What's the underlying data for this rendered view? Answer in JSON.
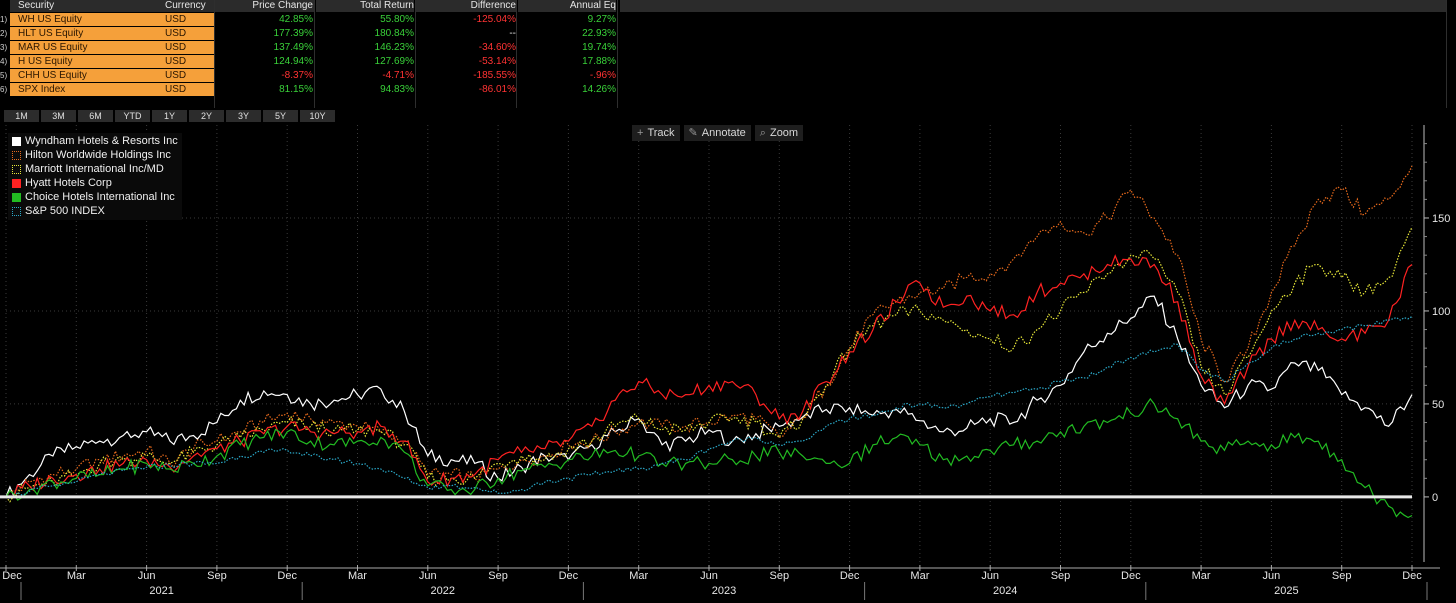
{
  "table": {
    "headers": [
      "Security",
      "Currency",
      "Price Change",
      "Total Return",
      "Difference",
      "Annual Eq"
    ],
    "rows": [
      {
        "num": "1)",
        "security": "WH US Equity",
        "currency": "USD",
        "price_change": "42.85%",
        "total_return": "55.80%",
        "difference": "-125.04%",
        "annual_eq": "9.27%"
      },
      {
        "num": "2)",
        "security": "HLT US Equity",
        "currency": "USD",
        "price_change": "177.39%",
        "total_return": "180.84%",
        "difference": "--",
        "annual_eq": "22.93%"
      },
      {
        "num": "3)",
        "security": "MAR US Equity",
        "currency": "USD",
        "price_change": "137.49%",
        "total_return": "146.23%",
        "difference": "-34.60%",
        "annual_eq": "19.74%"
      },
      {
        "num": "4)",
        "security": "H US Equity",
        "currency": "USD",
        "price_change": "124.94%",
        "total_return": "127.69%",
        "difference": "-53.14%",
        "annual_eq": "17.88%"
      },
      {
        "num": "5)",
        "security": "CHH US Equity",
        "currency": "USD",
        "price_change": "-8.37%",
        "total_return": "-4.71%",
        "difference": "-185.55%",
        "annual_eq": "-.96%"
      },
      {
        "num": "6)",
        "security": "SPX Index",
        "currency": "USD",
        "price_change": "81.15%",
        "total_return": "94.83%",
        "difference": "-86.01%",
        "annual_eq": "14.26%"
      }
    ]
  },
  "periods": [
    "1M",
    "3M",
    "6M",
    "YTD",
    "1Y",
    "2Y",
    "3Y",
    "5Y",
    "10Y"
  ],
  "tools": [
    {
      "icon": "crosshair-icon",
      "glyph": "+",
      "label": "Track"
    },
    {
      "icon": "pencil-icon",
      "glyph": "✎",
      "label": "Annotate"
    },
    {
      "icon": "magnifier-icon",
      "glyph": "⌕",
      "label": "Zoom"
    }
  ],
  "colors": {
    "positive": "#39d039",
    "negative": "#ff3333",
    "neutral": "#e6e6e6",
    "accent": "#f5a03a"
  },
  "chart_data": {
    "type": "line",
    "x_range": [
      "2020-12",
      "2025-12"
    ],
    "ylim": [
      -35,
      200
    ],
    "y_ticks": [
      0,
      50,
      100,
      150
    ],
    "x_ticks": [
      {
        "label": "Dec",
        "date": "2020-12"
      },
      {
        "label": "Mar",
        "date": "2021-03"
      },
      {
        "label": "Jun",
        "date": "2021-06"
      },
      {
        "label": "Sep",
        "date": "2021-09"
      },
      {
        "label": "Dec",
        "date": "2021-12"
      },
      {
        "label": "Mar",
        "date": "2022-03"
      },
      {
        "label": "Jun",
        "date": "2022-06"
      },
      {
        "label": "Sep",
        "date": "2022-09"
      },
      {
        "label": "Dec",
        "date": "2022-12"
      },
      {
        "label": "Mar",
        "date": "2023-03"
      },
      {
        "label": "Jun",
        "date": "2023-06"
      },
      {
        "label": "Sep",
        "date": "2023-09"
      },
      {
        "label": "Dec",
        "date": "2023-12"
      },
      {
        "label": "Mar",
        "date": "2024-03"
      },
      {
        "label": "Jun",
        "date": "2024-06"
      },
      {
        "label": "Sep",
        "date": "2024-09"
      },
      {
        "label": "Dec",
        "date": "2024-12"
      },
      {
        "label": "Mar",
        "date": "2025-03"
      },
      {
        "label": "Jun",
        "date": "2025-06"
      },
      {
        "label": "Sep",
        "date": "2025-09"
      },
      {
        "label": "Dec",
        "date": "2025-12"
      }
    ],
    "years": [
      {
        "label": "2021",
        "date": "2021-06"
      },
      {
        "label": "2022",
        "date": "2022-06"
      },
      {
        "label": "2023",
        "date": "2023-06"
      },
      {
        "label": "2024",
        "date": "2024-06"
      },
      {
        "label": "2025",
        "date": "2025-06"
      }
    ],
    "grid": true,
    "legend_position": "top-left",
    "x": [
      "2020-12",
      "2021-01",
      "2021-02",
      "2021-03",
      "2021-04",
      "2021-05",
      "2021-06",
      "2021-07",
      "2021-08",
      "2021-09",
      "2021-10",
      "2021-11",
      "2021-12",
      "2022-01",
      "2022-02",
      "2022-03",
      "2022-04",
      "2022-05",
      "2022-06",
      "2022-07",
      "2022-08",
      "2022-09",
      "2022-10",
      "2022-11",
      "2022-12",
      "2023-01",
      "2023-02",
      "2023-03",
      "2023-04",
      "2023-05",
      "2023-06",
      "2023-07",
      "2023-08",
      "2023-09",
      "2023-10",
      "2023-11",
      "2023-12",
      "2024-01",
      "2024-02",
      "2024-03",
      "2024-04",
      "2024-05",
      "2024-06",
      "2024-07",
      "2024-08",
      "2024-09",
      "2024-10",
      "2024-11",
      "2024-12",
      "2025-01",
      "2025-02",
      "2025-03",
      "2025-04",
      "2025-05",
      "2025-06",
      "2025-07",
      "2025-08",
      "2025-09",
      "2025-10",
      "2025-11",
      "2025-12"
    ],
    "series": [
      {
        "name": "Wyndham Hotels & Resorts Inc",
        "color": "#ffffff",
        "style": "solid",
        "values": [
          0,
          12,
          22,
          27,
          30,
          33,
          35,
          30,
          33,
          40,
          52,
          57,
          55,
          50,
          52,
          55,
          58,
          46,
          22,
          20,
          18,
          10,
          16,
          22,
          20,
          28,
          35,
          42,
          28,
          30,
          36,
          30,
          34,
          38,
          43,
          47,
          48,
          44,
          47,
          41,
          35,
          37,
          42,
          40,
          52,
          60,
          78,
          88,
          96,
          108,
          85,
          60,
          48,
          60,
          58,
          72,
          68,
          55,
          48,
          38,
          55
        ]
      },
      {
        "name": "Hilton Worldwide Holdings Inc",
        "color": "#e86a1c",
        "style": "dotted",
        "values": [
          0,
          8,
          12,
          15,
          20,
          22,
          25,
          18,
          26,
          30,
          35,
          40,
          45,
          42,
          40,
          38,
          35,
          30,
          12,
          12,
          10,
          15,
          20,
          22,
          28,
          30,
          35,
          40,
          38,
          38,
          40,
          44,
          42,
          32,
          42,
          60,
          80,
          98,
          105,
          110,
          112,
          118,
          120,
          128,
          140,
          148,
          142,
          150,
          165,
          150,
          130,
          85,
          62,
          80,
          110,
          135,
          160,
          165,
          152,
          160,
          178
        ]
      },
      {
        "name": "Marriott International Inc/MD",
        "color": "#e8e838",
        "style": "dotted",
        "values": [
          0,
          5,
          8,
          12,
          18,
          20,
          22,
          18,
          24,
          28,
          32,
          36,
          40,
          38,
          36,
          36,
          35,
          28,
          10,
          10,
          10,
          18,
          22,
          20,
          26,
          30,
          38,
          42,
          36,
          36,
          40,
          42,
          40,
          32,
          42,
          60,
          80,
          92,
          98,
          100,
          95,
          90,
          85,
          80,
          90,
          100,
          110,
          120,
          130,
          128,
          110,
          70,
          55,
          75,
          100,
          115,
          125,
          118,
          110,
          118,
          145
        ]
      },
      {
        "name": "Hyatt Hotels Corp",
        "color": "#ff2222",
        "style": "solid",
        "values": [
          0,
          6,
          10,
          12,
          15,
          18,
          20,
          16,
          22,
          26,
          30,
          34,
          38,
          35,
          34,
          35,
          38,
          30,
          8,
          10,
          12,
          20,
          24,
          26,
          30,
          38,
          52,
          62,
          55,
          55,
          60,
          62,
          55,
          42,
          46,
          62,
          78,
          90,
          105,
          115,
          102,
          108,
          100,
          98,
          110,
          115,
          120,
          125,
          128,
          125,
          105,
          65,
          50,
          70,
          85,
          95,
          90,
          85,
          88,
          95,
          125
        ]
      },
      {
        "name": "Choice Hotels International Inc",
        "color": "#22bb22",
        "style": "solid",
        "values": [
          0,
          4,
          8,
          10,
          12,
          15,
          18,
          15,
          18,
          22,
          28,
          32,
          35,
          30,
          28,
          30,
          32,
          24,
          6,
          4,
          4,
          10,
          14,
          16,
          20,
          22,
          25,
          22,
          18,
          18,
          18,
          20,
          22,
          24,
          22,
          18,
          18,
          28,
          32,
          28,
          20,
          22,
          25,
          28,
          30,
          35,
          38,
          40,
          45,
          50,
          42,
          30,
          25,
          30,
          28,
          32,
          30,
          20,
          5,
          -5,
          -10
        ]
      },
      {
        "name": "S&P 500 INDEX",
        "color": "#2aa8c8",
        "style": "dotted",
        "values": [
          0,
          3,
          6,
          8,
          12,
          14,
          16,
          17,
          18,
          18,
          22,
          24,
          25,
          22,
          20,
          18,
          15,
          10,
          5,
          6,
          5,
          2,
          4,
          8,
          10,
          12,
          14,
          15,
          18,
          20,
          26,
          30,
          32,
          28,
          30,
          38,
          42,
          44,
          48,
          50,
          48,
          50,
          54,
          56,
          58,
          62,
          64,
          70,
          75,
          78,
          82,
          68,
          62,
          72,
          80,
          85,
          88,
          90,
          92,
          95,
          97
        ]
      }
    ]
  }
}
